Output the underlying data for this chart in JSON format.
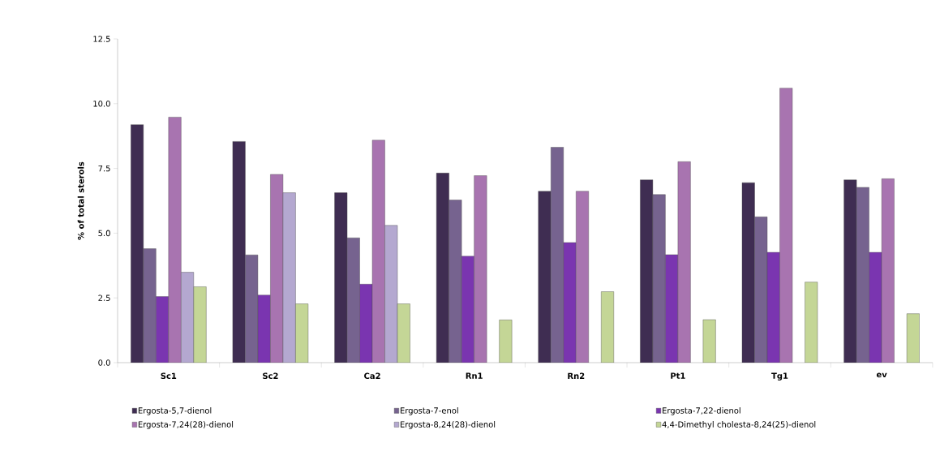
{
  "chart_data": {
    "type": "bar",
    "ylabel": "% of total sterols",
    "categories": [
      "Sc1",
      "Sc2",
      "Ca2",
      "Rn1",
      "Rn2",
      "Pt1",
      "Tg1",
      "ev"
    ],
    "series": [
      {
        "name": "Ergosta-5,7-dienol",
        "color": "#3f2d52",
        "values": [
          9.19,
          8.54,
          6.56,
          7.32,
          6.62,
          7.06,
          6.95,
          7.06
        ]
      },
      {
        "name": "Ergosta-7-enol",
        "color": "#76638f",
        "values": [
          4.4,
          4.16,
          4.82,
          6.28,
          8.32,
          6.49,
          5.63,
          6.77
        ]
      },
      {
        "name": "Ergosta-7,22-dienol",
        "color": "#7a35b0",
        "values": [
          2.55,
          2.61,
          3.03,
          4.11,
          4.64,
          4.17,
          4.26,
          4.26
        ]
      },
      {
        "name": "Ergosta-7,24(28)-dienol",
        "color": "#a874b0",
        "values": [
          9.48,
          7.27,
          8.59,
          7.22,
          6.62,
          7.76,
          10.6,
          7.1
        ]
      },
      {
        "name": "Ergosta-8,24(28)-dienol",
        "color": "#b4a8d0",
        "values": [
          3.49,
          6.56,
          5.3,
          null,
          null,
          null,
          null,
          null
        ]
      },
      {
        "name": "4,4-Dimethyl cholesta-8,24(25)-dienol",
        "color": "#c4d696",
        "values": [
          2.93,
          2.27,
          2.27,
          1.65,
          2.74,
          1.66,
          3.11,
          1.89
        ]
      }
    ],
    "ylim": [
      0,
      12.5
    ],
    "yticks": [
      {
        "value": 0,
        "label": "0.0"
      },
      {
        "value": 2.5,
        "label": "2.5"
      },
      {
        "value": 5,
        "label": "5.0"
      },
      {
        "value": 7.5,
        "label": "7.5"
      },
      {
        "value": 10,
        "label": "10.0"
      },
      {
        "value": 12.5,
        "label": "12.5"
      }
    ],
    "legend": "bottom"
  }
}
